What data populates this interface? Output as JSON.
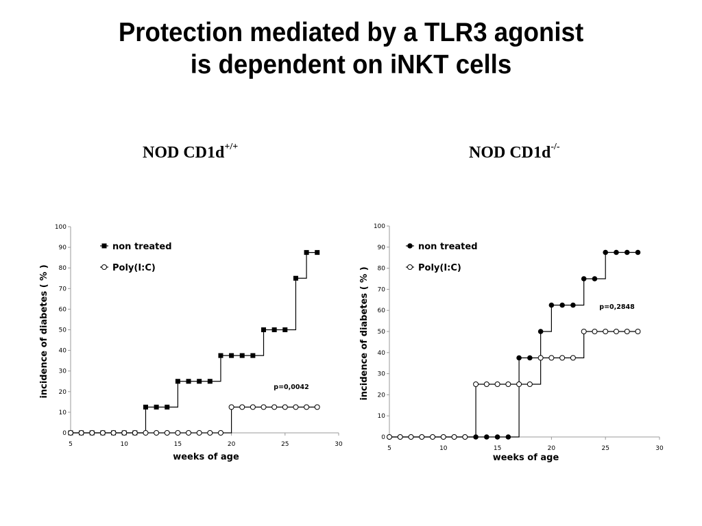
{
  "slide": {
    "title_line1": "Protection mediated by a TLR3 agonist",
    "title_line2": "is dependent on iNKT cells"
  },
  "panels": [
    {
      "label": "NOD CD1d",
      "label_sup": "+/+"
    },
    {
      "label": "NOD CD1d",
      "label_sup": "-/-"
    }
  ],
  "chart_data": [
    {
      "type": "line",
      "xlabel": "weeks of age",
      "ylabel": "incidence of diabetes ( % )",
      "xlim": [
        5,
        30
      ],
      "ylim": [
        0,
        100
      ],
      "xticks": [
        5,
        10,
        15,
        20,
        25,
        30
      ],
      "yticks": [
        0,
        10,
        20,
        30,
        40,
        50,
        60,
        70,
        80,
        90,
        100
      ],
      "legend_position": "top-left",
      "annotation": "p=0,0042",
      "x": [
        5,
        6,
        7,
        8,
        9,
        10,
        11,
        12,
        13,
        14,
        15,
        16,
        17,
        18,
        19,
        20,
        21,
        22,
        23,
        24,
        25,
        26,
        27,
        28
      ],
      "series": [
        {
          "name": "non treated",
          "marker": "filled-square",
          "values": [
            0,
            0,
            0,
            0,
            0,
            0,
            0,
            12.5,
            12.5,
            12.5,
            25,
            25,
            25,
            25,
            37.5,
            37.5,
            37.5,
            37.5,
            50,
            50,
            50,
            75,
            87.5,
            87.5
          ]
        },
        {
          "name": "Poly(I:C)",
          "marker": "open-circle",
          "values": [
            0,
            0,
            0,
            0,
            0,
            0,
            0,
            0,
            0,
            0,
            0,
            0,
            0,
            0,
            0,
            12.5,
            12.5,
            12.5,
            12.5,
            12.5,
            12.5,
            12.5,
            12.5,
            12.5
          ]
        }
      ]
    },
    {
      "type": "line",
      "xlabel": "weeks of age",
      "ylabel": "incidence of diabetes ( % )",
      "xlim": [
        5,
        30
      ],
      "ylim": [
        0,
        100
      ],
      "xticks": [
        5,
        10,
        15,
        20,
        25,
        30
      ],
      "yticks": [
        0,
        10,
        20,
        30,
        40,
        50,
        60,
        70,
        80,
        90,
        100
      ],
      "legend_position": "top-left",
      "annotation": "p=0,2848",
      "x": [
        5,
        6,
        7,
        8,
        9,
        10,
        11,
        12,
        13,
        14,
        15,
        16,
        17,
        18,
        19,
        20,
        21,
        22,
        23,
        24,
        25,
        26,
        27,
        28
      ],
      "series": [
        {
          "name": "non treated",
          "marker": "filled-circle",
          "values": [
            0,
            0,
            0,
            0,
            0,
            0,
            0,
            0,
            0,
            0,
            0,
            0,
            37.5,
            37.5,
            50,
            62.5,
            62.5,
            62.5,
            75,
            75,
            87.5,
            87.5,
            87.5,
            87.5
          ]
        },
        {
          "name": "Poly(I:C)",
          "marker": "open-circle",
          "values": [
            0,
            0,
            0,
            0,
            0,
            0,
            0,
            0,
            25,
            25,
            25,
            25,
            25,
            25,
            37.5,
            37.5,
            37.5,
            37.5,
            50,
            50,
            50,
            50,
            50,
            50
          ]
        }
      ]
    }
  ]
}
